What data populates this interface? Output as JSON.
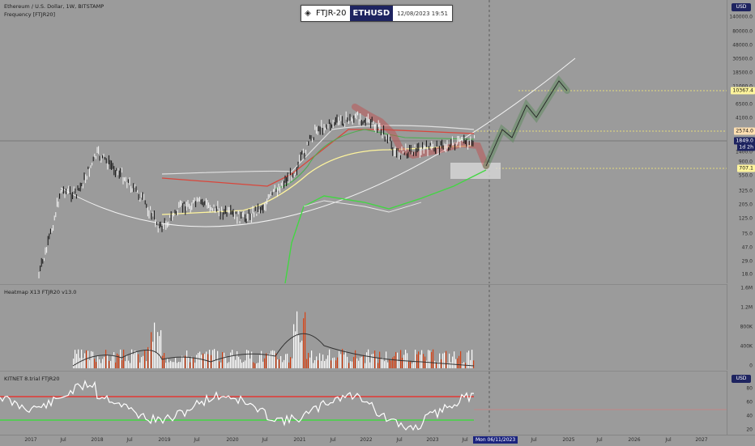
{
  "symbol_title": "Ethereum / U.S. Dollar, 1W, BITSTAMP",
  "indicator_frequency": "Frequency [FTJR20]",
  "badge": {
    "name": "FTJR-20",
    "symbol": "ETHUSD",
    "datetime": "12/08/2023 19:51"
  },
  "currency": "USD",
  "price_axis": [
    "140000.0",
    "80000.0",
    "48000.0",
    "30500.0",
    "18500.0",
    "11000.0",
    "6500.0",
    "4100.0",
    "2574.0",
    "1400.0",
    "900.0",
    "550.0",
    "325.0",
    "205.0",
    "125.0",
    "75.0",
    "47.0",
    "29.0",
    "18.0"
  ],
  "price_labels": {
    "target": "10367.4",
    "level_high": "2574.0",
    "current": "1849.0",
    "current_sub": "1d 2h",
    "level_low": "707.1"
  },
  "heatmap": {
    "title": "Heatmap X13 FTJR20  v13.0",
    "axis": [
      "1.6M",
      "1.2M",
      "800K",
      "400K",
      "0"
    ]
  },
  "kitnet": {
    "title": "KITNET  8.trial  FTJR20",
    "currency": "USD",
    "axis": [
      "80",
      "60",
      "40",
      "20"
    ]
  },
  "time_axis": [
    "2017",
    "Jul",
    "2018",
    "Jul",
    "2019",
    "Jul",
    "2020",
    "Jul",
    "2021",
    "Jul",
    "2022",
    "Jul",
    "2023",
    "Jul",
    "Jul",
    "2025",
    "Jul",
    "2026",
    "Jul",
    "2027"
  ],
  "cursor_date": "Mon 06/11/2023",
  "colors": {
    "background": "#9b9b9b",
    "badge_symbol": "#1e2460",
    "target_pill": "#fff59d",
    "level_pill": "#ffe0b2",
    "current_pill": "#1e2460",
    "low_pill": "#fff59d"
  }
}
